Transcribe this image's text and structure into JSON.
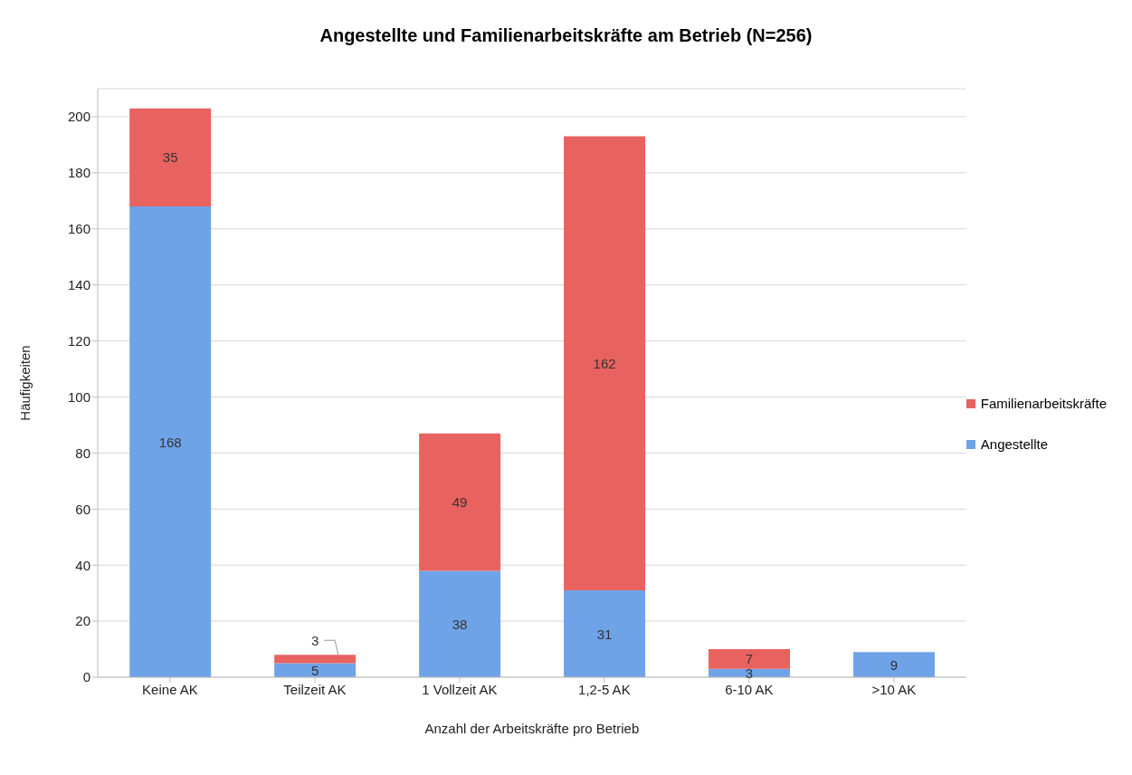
{
  "chart_data": {
    "type": "bar",
    "title": "Angestellte und Familienarbeitskräfte am Betrieb (N=256)",
    "xlabel": "Anzahl der Arbeitskräfte pro Betrieb",
    "ylabel": "Häufigkeiten",
    "categories": [
      "Keine  AK",
      "Teilzeit AK",
      "1 Vollzeit AK",
      "1,2-5 AK",
      "6-10 AK",
      ">10 AK"
    ],
    "series": [
      {
        "name": "Angestellte",
        "color": "#6fa3e8",
        "values": [
          168,
          5,
          38,
          31,
          3,
          9
        ]
      },
      {
        "name": "Familienarbeitskräfte",
        "color": "#e8625f",
        "values": [
          35,
          3,
          49,
          162,
          7,
          null
        ]
      }
    ],
    "stacked": true,
    "ylim": [
      0,
      210
    ],
    "yticks": [
      0,
      20,
      40,
      60,
      80,
      100,
      120,
      140,
      160,
      180,
      200
    ],
    "grid": "y",
    "legend": "right",
    "data_labels": true
  }
}
